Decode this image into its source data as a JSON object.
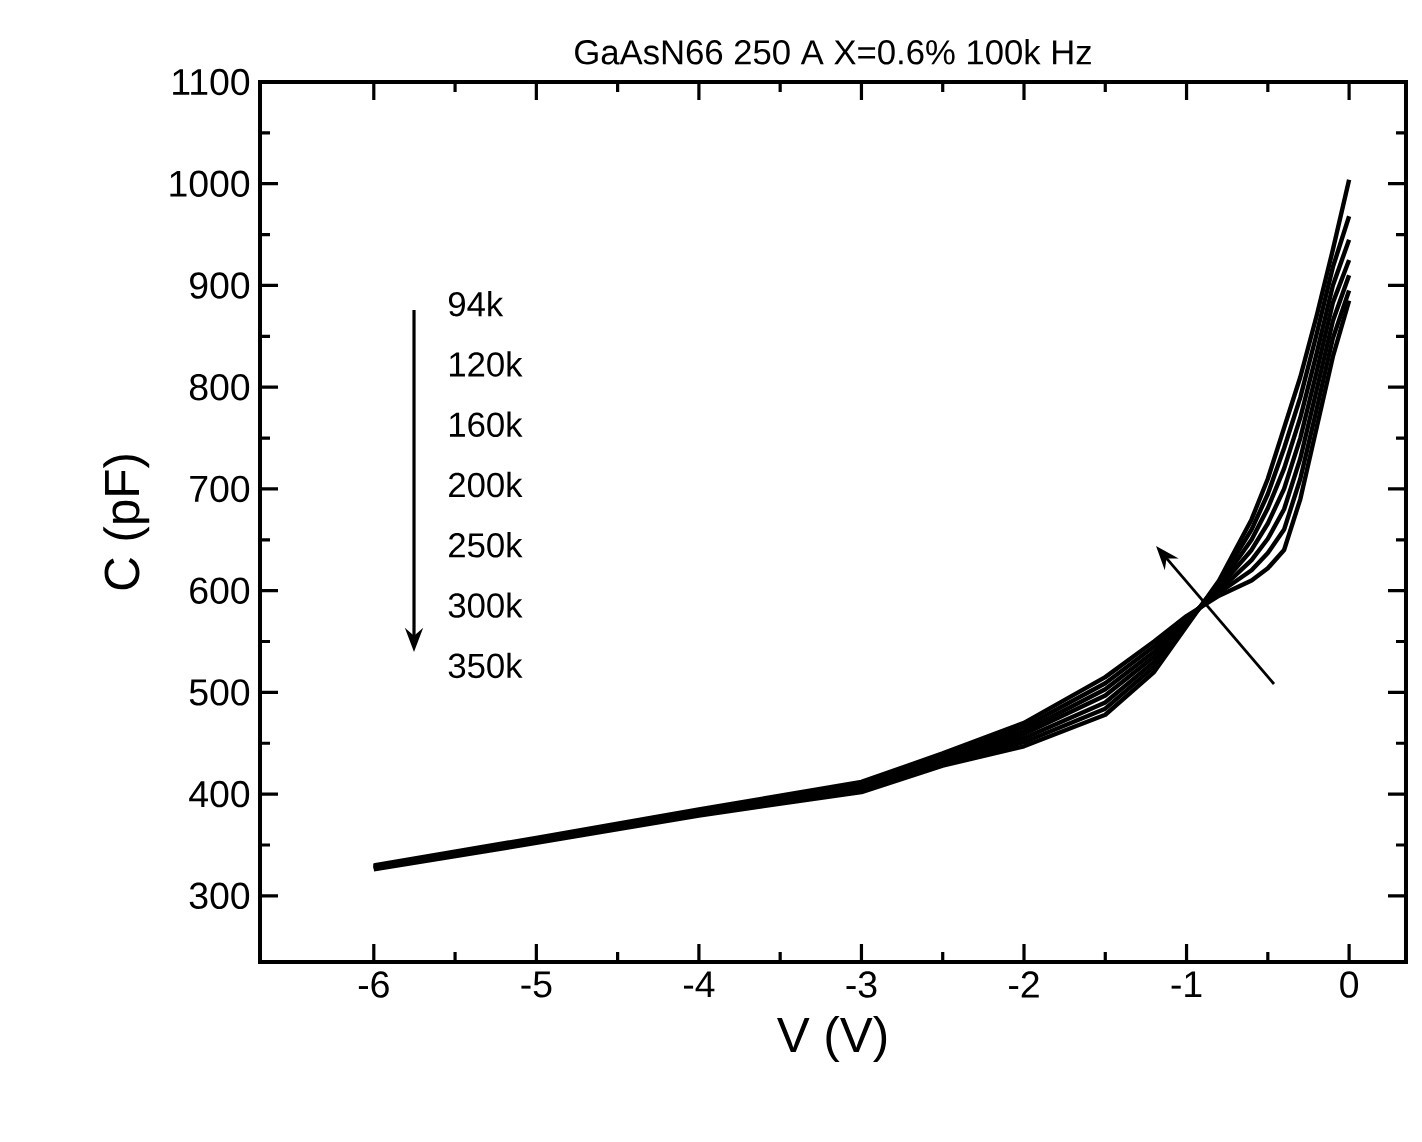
{
  "chart_data": {
    "type": "line",
    "title": "GaAsN66 250 A X=0.6% 100k Hz",
    "xlabel": "V (V)",
    "ylabel": "C (pF)",
    "x": [
      -6,
      -5,
      -4,
      -3,
      -2.5,
      -2,
      -1.5,
      -1.2,
      -1,
      -0.8,
      -0.6,
      -0.5,
      -0.4,
      -0.3,
      -0.2,
      -0.1,
      0
    ],
    "series": [
      {
        "color": "#000000",
        "values": [
          326,
          352,
          379,
          402,
          428,
          447,
          478,
          520,
          565,
          610,
          670,
          710,
          760,
          810,
          870,
          935,
          1004
        ]
      },
      {
        "color": "#000000",
        "values": [
          327,
          353,
          380,
          404,
          430,
          451,
          484,
          525,
          567,
          608,
          660,
          695,
          740,
          790,
          852,
          918,
          968
        ]
      },
      {
        "color": "#000000",
        "values": [
          327,
          354,
          381,
          405,
          432,
          455,
          490,
          530,
          568,
          605,
          650,
          681,
          720,
          770,
          833,
          900,
          945
        ]
      },
      {
        "color": "#000000",
        "values": [
          328,
          355,
          382,
          407,
          434,
          459,
          497,
          535,
          570,
          603,
          640,
          666,
          700,
          750,
          815,
          883,
          925
        ]
      },
      {
        "color": "#000000",
        "values": [
          329,
          355,
          383,
          409,
          436,
          462,
          503,
          540,
          572,
          600,
          630,
          651,
          680,
          730,
          797,
          865,
          910
        ]
      },
      {
        "color": "#000000",
        "values": [
          329,
          356,
          384,
          410,
          438,
          466,
          509,
          545,
          573,
          598,
          620,
          637,
          660,
          710,
          778,
          848,
          895
        ]
      },
      {
        "color": "#000000",
        "values": [
          330,
          357,
          385,
          412,
          440,
          470,
          515,
          550,
          575,
          595,
          610,
          622,
          640,
          690,
          760,
          830,
          885
        ]
      }
    ],
    "xlim": [
      -6.7,
      0.35
    ],
    "ylim": [
      235,
      1100
    ],
    "xticks": [
      -6,
      -5,
      -4,
      -3,
      -2,
      -1,
      0
    ],
    "yticks": [
      300,
      400,
      500,
      600,
      700,
      800,
      900,
      1000,
      1100
    ],
    "annotations": [
      "94k",
      "120k",
      "160k",
      "200k",
      "250k",
      "300k",
      "350k"
    ],
    "grid": false,
    "marker": "none",
    "line_style": "solid"
  }
}
